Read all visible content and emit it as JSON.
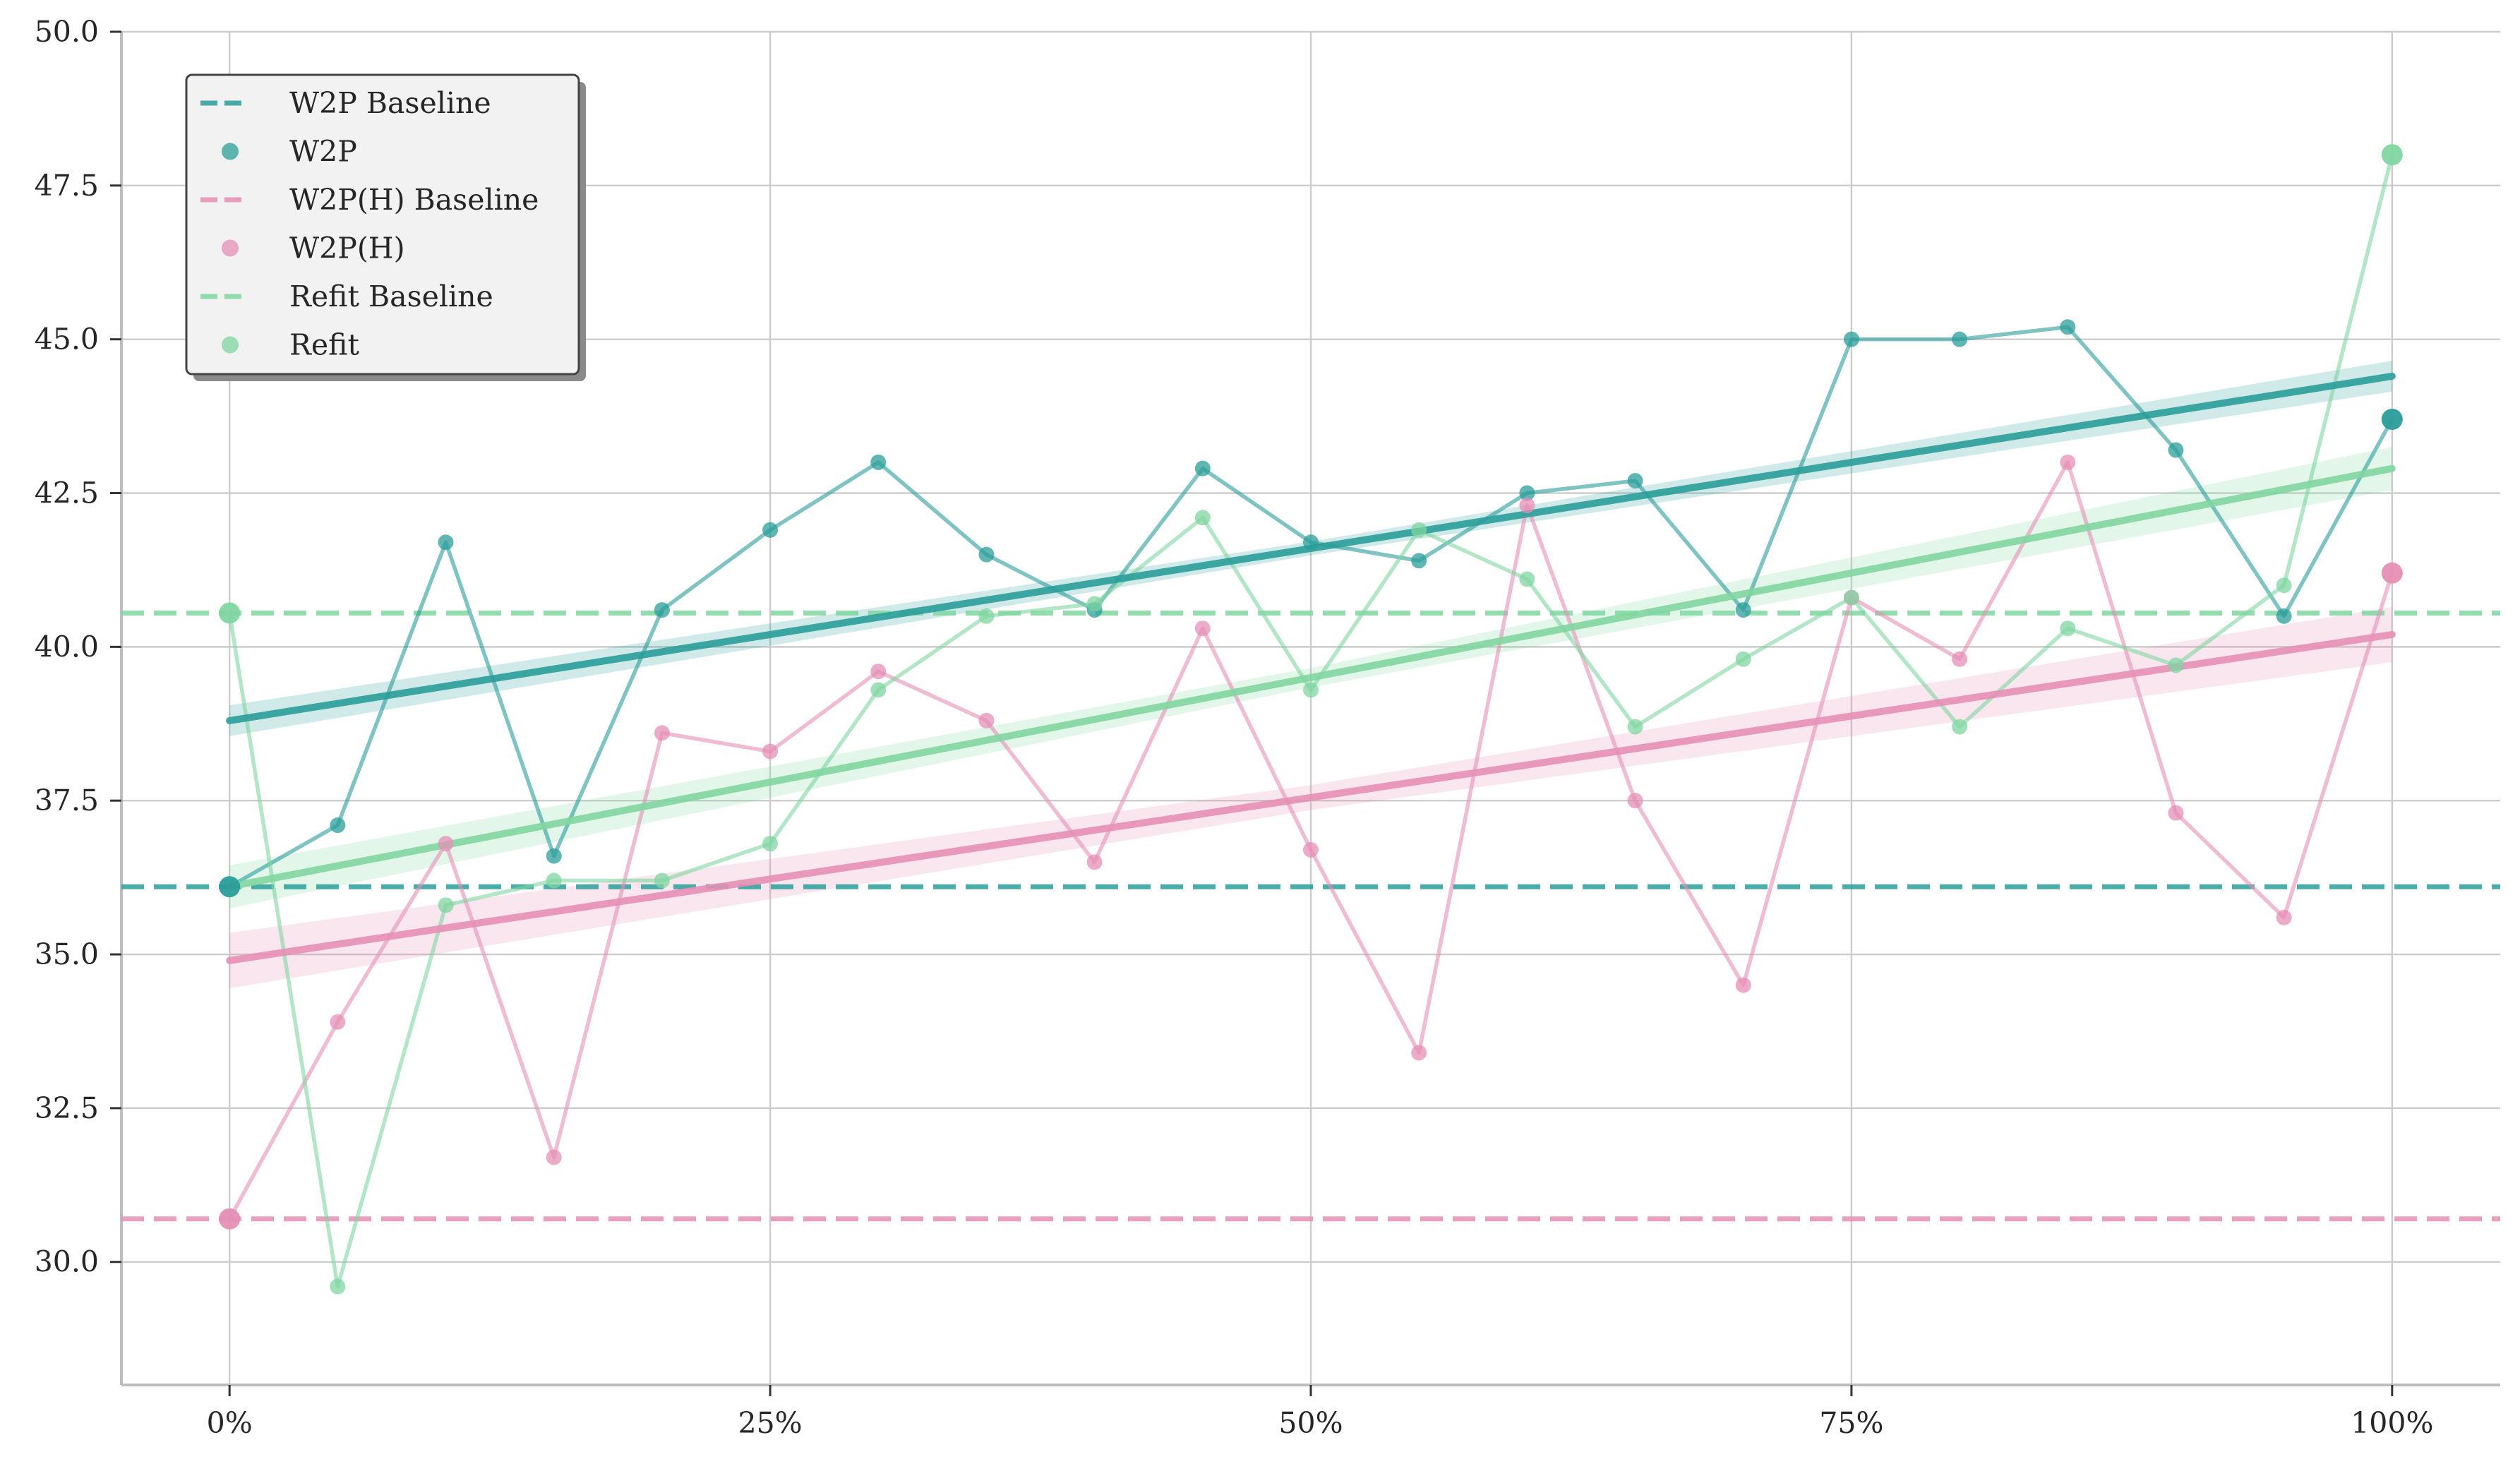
{
  "chart_data": {
    "type": "line",
    "title": "",
    "xlabel": "",
    "ylabel": "",
    "x": [
      0,
      5,
      10,
      15,
      20,
      25,
      30,
      35,
      40,
      45,
      50,
      55,
      60,
      65,
      70,
      75,
      80,
      85,
      90,
      95,
      100
    ],
    "x_tick_values": [
      0,
      25,
      50,
      75,
      100
    ],
    "x_tick_labels": [
      "0%",
      "25%",
      "50%",
      "75%",
      "100%"
    ],
    "xlim": [
      -5,
      105
    ],
    "y_tick_values": [
      30.0,
      32.5,
      35.0,
      37.5,
      40.0,
      42.5,
      45.0,
      47.5,
      50.0
    ],
    "y_tick_labels": [
      "30.0",
      "32.5",
      "35.0",
      "37.5",
      "40.0",
      "42.5",
      "45.0",
      "47.5",
      "50.0"
    ],
    "ylim": [
      28.0,
      50.0
    ],
    "grid": true,
    "legend_position": "top-left",
    "series": [
      {
        "name": "W2P",
        "baseline_label": "W2P Baseline",
        "color": "#2a9d99",
        "baseline": 36.1,
        "values": [
          36.1,
          37.1,
          41.7,
          36.6,
          40.6,
          41.9,
          43.0,
          41.5,
          40.6,
          42.9,
          41.7,
          41.4,
          42.5,
          42.7,
          40.6,
          45.0,
          45.0,
          45.2,
          43.2,
          40.5,
          43.7
        ],
        "trend": [
          38.8,
          44.4
        ],
        "trend_band": 0.25
      },
      {
        "name": "W2P(H)",
        "baseline_label": "W2P(H) Baseline",
        "color": "#e58fb5",
        "baseline": 30.7,
        "values": [
          30.7,
          33.9,
          36.8,
          31.7,
          38.6,
          38.3,
          39.6,
          38.8,
          36.5,
          40.3,
          36.7,
          33.4,
          42.3,
          37.5,
          34.5,
          40.8,
          39.8,
          43.0,
          37.3,
          35.6,
          41.2
        ],
        "trend": [
          34.9,
          40.2
        ],
        "trend_band": 0.45
      },
      {
        "name": "Refit",
        "baseline_label": "Refit Baseline",
        "color": "#7fd6a0",
        "baseline": 40.55,
        "values": [
          40.55,
          29.6,
          35.8,
          36.2,
          36.2,
          36.8,
          39.3,
          40.5,
          40.7,
          42.1,
          39.3,
          41.9,
          41.1,
          38.7,
          39.8,
          40.8,
          38.7,
          40.3,
          39.7,
          41.0,
          48.0
        ],
        "trend": [
          36.1,
          42.9
        ],
        "trend_band": 0.35
      }
    ]
  }
}
